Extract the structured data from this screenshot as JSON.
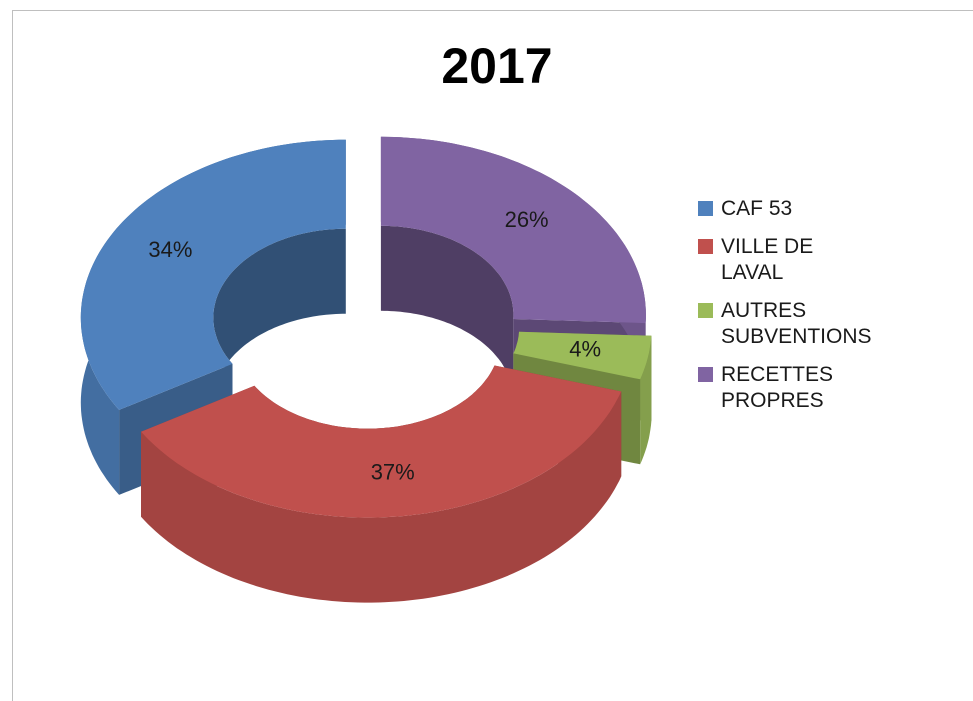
{
  "chart_data": {
    "type": "pie",
    "title": "2017",
    "categories": [
      "CAF 53",
      "VILLE DE LAVAL",
      "AUTRES SUBVENTIONS",
      "RECETTES PROPRES"
    ],
    "values": [
      34,
      37,
      4,
      26
    ],
    "value_labels": [
      "34%",
      "37%",
      "4%",
      "26%"
    ],
    "colors": [
      "#4f81bd",
      "#c0504d",
      "#9bbb59",
      "#8064a2"
    ],
    "legend": "right"
  }
}
